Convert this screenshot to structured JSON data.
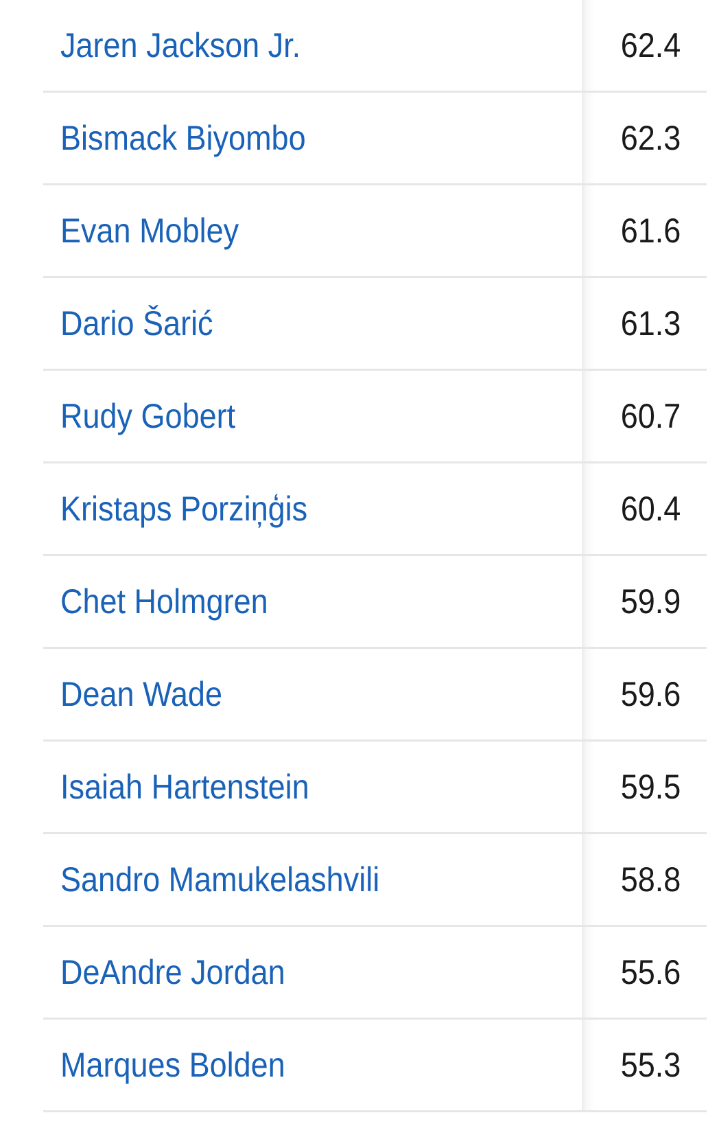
{
  "table": {
    "rows": [
      [
        "Jaren Jackson Jr.",
        62.4
      ],
      [
        "Bismack Biyombo",
        62.3
      ],
      [
        "Evan Mobley",
        61.6
      ],
      [
        "Dario Šarić",
        61.3
      ],
      [
        "Rudy Gobert",
        60.7
      ],
      [
        "Kristaps Porziņģis",
        60.4
      ],
      [
        "Chet Holmgren",
        59.9
      ],
      [
        "Dean Wade",
        59.6
      ],
      [
        "Isaiah Hartenstein",
        59.5
      ],
      [
        "Sandro Mamukelashvili",
        58.8
      ],
      [
        "DeAndre Jordan",
        55.6
      ],
      [
        "Marques Bolden",
        55.3
      ]
    ]
  }
}
